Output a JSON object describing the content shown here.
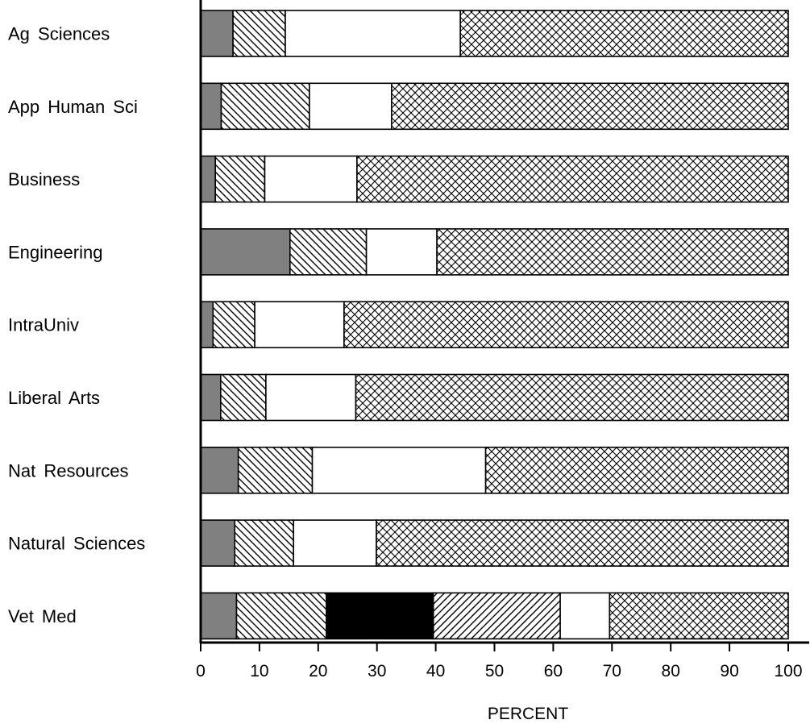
{
  "chart_data": {
    "type": "bar",
    "orientation": "horizontal",
    "stacked": true,
    "title": "",
    "xlabel": "PERCENT",
    "ylabel": "",
    "xlim": [
      0,
      100
    ],
    "xticks": [
      "0",
      "10",
      "20",
      "30",
      "40",
      "50",
      "60",
      "70",
      "80",
      "90",
      "100"
    ],
    "grid": false,
    "legend": "none",
    "categories": [
      "Ag Sciences",
      "App Human Sci",
      "Business",
      "Engineering",
      "IntraUniv",
      "Liberal Arts",
      "Nat Resources",
      "Natural Sciences",
      "Vet Med"
    ],
    "series": [
      {
        "pattern": "solid-gray",
        "color": "#808080",
        "values": [
          5.5,
          3.5,
          2.5,
          15.2,
          2.1,
          3.4,
          6.4,
          5.8,
          6.1
        ]
      },
      {
        "pattern": "hatch-backslash",
        "color": "#000000",
        "values": [
          8.9,
          15.0,
          8.4,
          13.0,
          7.1,
          7.7,
          12.6,
          10.0,
          15.3
        ]
      },
      {
        "pattern": "solid-black",
        "color": "#000000",
        "values": [
          0,
          0,
          0,
          0,
          0,
          0,
          0,
          0,
          18.2
        ]
      },
      {
        "pattern": "hatch-forwardslash",
        "color": "#000000",
        "values": [
          0,
          0,
          0,
          0,
          0,
          0,
          0,
          0,
          21.6
        ]
      },
      {
        "pattern": "solid-white",
        "color": "#ffffff",
        "values": [
          29.8,
          14.0,
          15.7,
          12.0,
          15.2,
          15.3,
          29.5,
          14.1,
          8.4
        ]
      },
      {
        "pattern": "crosshatch",
        "color": "#000000",
        "values": [
          55.8,
          67.5,
          73.4,
          59.8,
          75.6,
          73.6,
          51.5,
          70.1,
          30.4
        ]
      }
    ]
  }
}
